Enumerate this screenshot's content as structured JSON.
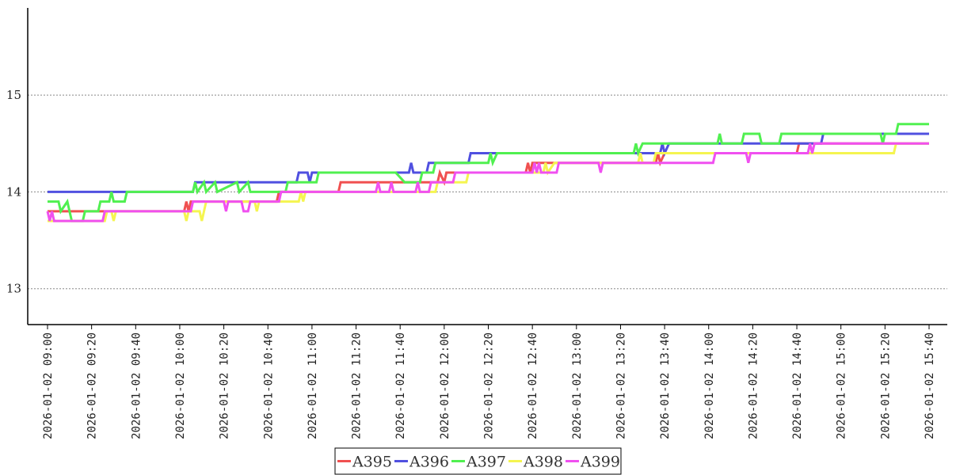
{
  "chart_data": {
    "type": "line",
    "title": "",
    "xlabel": "",
    "ylabel": "",
    "x_range": [
      "2026-01-02 09:00",
      "2026-01-02 15:40"
    ],
    "ylim": [
      12.63,
      15.9
    ],
    "y_ticks": [
      13,
      14,
      15
    ],
    "x_ticks": [
      "2026-01-02 09:00",
      "2026-01-02 09:20",
      "2026-01-02 09:40",
      "2026-01-02 10:00",
      "2026-01-02 10:20",
      "2026-01-02 10:40",
      "2026-01-02 11:00",
      "2026-01-02 11:20",
      "2026-01-02 11:40",
      "2026-01-02 12:00",
      "2026-01-02 12:20",
      "2026-01-02 12:40",
      "2026-01-02 13:00",
      "2026-01-02 13:20",
      "2026-01-02 13:40",
      "2026-01-02 14:00",
      "2026-01-02 14:20",
      "2026-01-02 14:40",
      "2026-01-02 15:00",
      "2026-01-02 15:20",
      "2026-01-02 15:40"
    ],
    "grid": "horizontal-dotted",
    "legend_position": "bottom-center",
    "series": [
      {
        "name": "A395",
        "color": "#f05050",
        "points": [
          [
            "09:00",
            13.8
          ],
          [
            "10:02",
            13.8
          ],
          [
            "10:03",
            13.9
          ],
          [
            "10:04",
            13.8
          ],
          [
            "10:05",
            13.9
          ],
          [
            "10:44",
            13.9
          ],
          [
            "10:45",
            14.0
          ],
          [
            "11:12",
            14.0
          ],
          [
            "11:13",
            14.1
          ],
          [
            "11:57",
            14.1
          ],
          [
            "11:58",
            14.2
          ],
          [
            "12:00",
            14.1
          ],
          [
            "12:01",
            14.2
          ],
          [
            "12:37",
            14.2
          ],
          [
            "12:38",
            14.3
          ],
          [
            "12:39",
            14.2
          ],
          [
            "12:40",
            14.3
          ],
          [
            "13:36",
            14.3
          ],
          [
            "13:37",
            14.4
          ],
          [
            "13:38",
            14.3
          ],
          [
            "13:40",
            14.4
          ],
          [
            "14:40",
            14.4
          ],
          [
            "14:41",
            14.5
          ],
          [
            "15:40",
            14.5
          ]
        ]
      },
      {
        "name": "A396",
        "color": "#5050e0",
        "points": [
          [
            "09:00",
            14.0
          ],
          [
            "10:06",
            14.0
          ],
          [
            "10:07",
            14.1
          ],
          [
            "10:53",
            14.1
          ],
          [
            "10:54",
            14.2
          ],
          [
            "10:58",
            14.2
          ],
          [
            "10:59",
            14.1
          ],
          [
            "11:00",
            14.2
          ],
          [
            "11:44",
            14.2
          ],
          [
            "11:45",
            14.3
          ],
          [
            "11:46",
            14.2
          ],
          [
            "11:52",
            14.2
          ],
          [
            "11:53",
            14.3
          ],
          [
            "12:11",
            14.3
          ],
          [
            "12:12",
            14.4
          ],
          [
            "13:38",
            14.4
          ],
          [
            "13:39",
            14.5
          ],
          [
            "13:40",
            14.4
          ],
          [
            "13:42",
            14.5
          ],
          [
            "14:51",
            14.5
          ],
          [
            "14:52",
            14.6
          ],
          [
            "15:40",
            14.6
          ]
        ]
      },
      {
        "name": "A397",
        "color": "#50f050",
        "points": [
          [
            "09:00",
            13.9
          ],
          [
            "09:05",
            13.9
          ],
          [
            "09:06",
            13.8
          ],
          [
            "09:09",
            13.9
          ],
          [
            "09:11",
            13.7
          ],
          [
            "09:16",
            13.7
          ],
          [
            "09:17",
            13.8
          ],
          [
            "09:23",
            13.8
          ],
          [
            "09:24",
            13.9
          ],
          [
            "09:28",
            13.9
          ],
          [
            "09:29",
            14.0
          ],
          [
            "09:30",
            13.9
          ],
          [
            "09:35",
            13.9
          ],
          [
            "09:36",
            14.0
          ],
          [
            "10:06",
            14.0
          ],
          [
            "10:07",
            14.1
          ],
          [
            "10:08",
            14.0
          ],
          [
            "10:11",
            14.1
          ],
          [
            "10:12",
            14.0
          ],
          [
            "10:16",
            14.1
          ],
          [
            "10:17",
            14.0
          ],
          [
            "10:26",
            14.1
          ],
          [
            "10:27",
            14.0
          ],
          [
            "10:31",
            14.1
          ],
          [
            "10:32",
            14.0
          ],
          [
            "10:48",
            14.0
          ],
          [
            "10:49",
            14.1
          ],
          [
            "11:02",
            14.1
          ],
          [
            "11:03",
            14.2
          ],
          [
            "11:38",
            14.2
          ],
          [
            "11:42",
            14.1
          ],
          [
            "11:49",
            14.1
          ],
          [
            "11:50",
            14.2
          ],
          [
            "11:55",
            14.2
          ],
          [
            "11:56",
            14.3
          ],
          [
            "12:20",
            14.3
          ],
          [
            "12:21",
            14.4
          ],
          [
            "12:22",
            14.3
          ],
          [
            "12:24",
            14.4
          ],
          [
            "13:26",
            14.4
          ],
          [
            "13:27",
            14.5
          ],
          [
            "13:28",
            14.4
          ],
          [
            "13:30",
            14.5
          ],
          [
            "14:04",
            14.5
          ],
          [
            "14:05",
            14.6
          ],
          [
            "14:06",
            14.5
          ],
          [
            "14:15",
            14.5
          ],
          [
            "14:16",
            14.6
          ],
          [
            "14:23",
            14.6
          ],
          [
            "14:24",
            14.5
          ],
          [
            "14:32",
            14.5
          ],
          [
            "14:33",
            14.6
          ],
          [
            "15:18",
            14.6
          ],
          [
            "15:19",
            14.5
          ],
          [
            "15:20",
            14.6
          ],
          [
            "15:25",
            14.6
          ],
          [
            "15:26",
            14.7
          ],
          [
            "15:40",
            14.7
          ]
        ]
      },
      {
        "name": "A398",
        "color": "#f5f550",
        "points": [
          [
            "09:00",
            13.7
          ],
          [
            "09:26",
            13.7
          ],
          [
            "09:27",
            13.8
          ],
          [
            "09:29",
            13.8
          ],
          [
            "09:30",
            13.7
          ],
          [
            "09:31",
            13.8
          ],
          [
            "10:02",
            13.8
          ],
          [
            "10:03",
            13.7
          ],
          [
            "10:04",
            13.8
          ],
          [
            "10:09",
            13.8
          ],
          [
            "10:10",
            13.7
          ],
          [
            "10:12",
            13.9
          ],
          [
            "10:34",
            13.9
          ],
          [
            "10:35",
            13.8
          ],
          [
            "10:36",
            13.9
          ],
          [
            "10:54",
            13.9
          ],
          [
            "10:55",
            14.0
          ],
          [
            "10:56",
            13.9
          ],
          [
            "10:57",
            14.0
          ],
          [
            "11:56",
            14.0
          ],
          [
            "11:57",
            14.1
          ],
          [
            "12:10",
            14.1
          ],
          [
            "12:11",
            14.2
          ],
          [
            "12:45",
            14.2
          ],
          [
            "12:46",
            14.3
          ],
          [
            "12:47",
            14.2
          ],
          [
            "12:50",
            14.3
          ],
          [
            "13:28",
            14.3
          ],
          [
            "13:29",
            14.4
          ],
          [
            "13:30",
            14.3
          ],
          [
            "13:35",
            14.3
          ],
          [
            "13:36",
            14.4
          ],
          [
            "14:42",
            14.4
          ],
          [
            "14:43",
            14.4
          ],
          [
            "15:24",
            14.4
          ],
          [
            "15:25",
            14.5
          ],
          [
            "15:40",
            14.5
          ]
        ]
      },
      {
        "name": "A399",
        "color": "#f050f0",
        "points": [
          [
            "09:00",
            13.8
          ],
          [
            "09:01",
            13.7
          ],
          [
            "09:02",
            13.8
          ],
          [
            "09:03",
            13.7
          ],
          [
            "09:25",
            13.7
          ],
          [
            "09:26",
            13.8
          ],
          [
            "10:05",
            13.8
          ],
          [
            "10:06",
            13.9
          ],
          [
            "10:20",
            13.9
          ],
          [
            "10:21",
            13.8
          ],
          [
            "10:22",
            13.9
          ],
          [
            "10:28",
            13.9
          ],
          [
            "10:29",
            13.8
          ],
          [
            "10:31",
            13.8
          ],
          [
            "10:32",
            13.9
          ],
          [
            "10:45",
            13.9
          ],
          [
            "10:46",
            14.0
          ],
          [
            "11:29",
            14.0
          ],
          [
            "11:30",
            14.1
          ],
          [
            "11:31",
            14.0
          ],
          [
            "11:35",
            14.0
          ],
          [
            "11:36",
            14.1
          ],
          [
            "11:37",
            14.0
          ],
          [
            "11:47",
            14.0
          ],
          [
            "11:48",
            14.1
          ],
          [
            "11:49",
            14.0
          ],
          [
            "11:53",
            14.0
          ],
          [
            "11:54",
            14.1
          ],
          [
            "12:04",
            14.1
          ],
          [
            "12:05",
            14.2
          ],
          [
            "12:40",
            14.2
          ],
          [
            "12:41",
            14.3
          ],
          [
            "12:42",
            14.2
          ],
          [
            "12:43",
            14.3
          ],
          [
            "12:44",
            14.2
          ],
          [
            "12:51",
            14.2
          ],
          [
            "12:52",
            14.3
          ],
          [
            "13:10",
            14.3
          ],
          [
            "13:11",
            14.2
          ],
          [
            "13:12",
            14.3
          ],
          [
            "13:37",
            14.3
          ],
          [
            "13:38",
            14.3
          ],
          [
            "14:02",
            14.3
          ],
          [
            "14:03",
            14.4
          ],
          [
            "14:17",
            14.4
          ],
          [
            "14:18",
            14.3
          ],
          [
            "14:19",
            14.4
          ],
          [
            "14:45",
            14.4
          ],
          [
            "14:46",
            14.5
          ],
          [
            "14:47",
            14.4
          ],
          [
            "14:48",
            14.5
          ],
          [
            "15:40",
            14.5
          ]
        ]
      }
    ]
  }
}
